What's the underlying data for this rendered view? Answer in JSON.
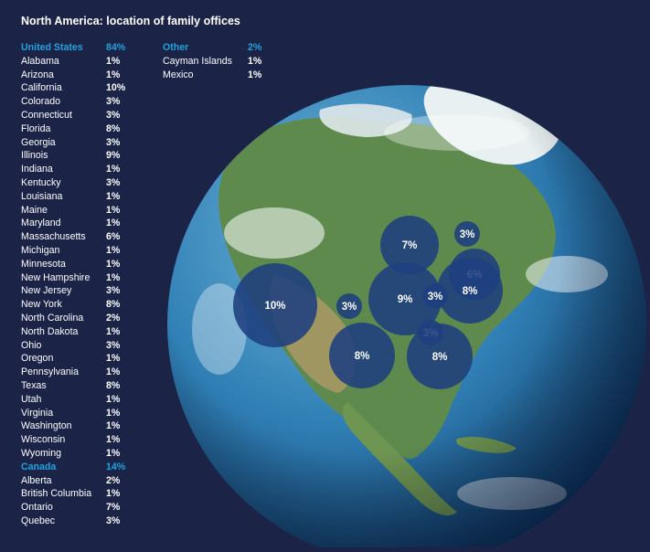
{
  "title": "North America: location of family offices",
  "united_states": {
    "label": "United States",
    "total": "84%",
    "rows": [
      {
        "name": "Alabama",
        "pct": "1%"
      },
      {
        "name": "Arizona",
        "pct": "1%"
      },
      {
        "name": "California",
        "pct": "10%"
      },
      {
        "name": "Colorado",
        "pct": "3%"
      },
      {
        "name": "Connecticut",
        "pct": "3%"
      },
      {
        "name": "Florida",
        "pct": "8%"
      },
      {
        "name": "Georgia",
        "pct": "3%"
      },
      {
        "name": "Illinois",
        "pct": "9%"
      },
      {
        "name": "Indiana",
        "pct": "1%"
      },
      {
        "name": "Kentucky",
        "pct": "3%"
      },
      {
        "name": "Louisiana",
        "pct": "1%"
      },
      {
        "name": "Maine",
        "pct": "1%"
      },
      {
        "name": "Maryland",
        "pct": "1%"
      },
      {
        "name": "Massachusetts",
        "pct": "6%"
      },
      {
        "name": "Michigan",
        "pct": "1%"
      },
      {
        "name": "Minnesota",
        "pct": "1%"
      },
      {
        "name": "New Hampshire",
        "pct": "1%"
      },
      {
        "name": "New Jersey",
        "pct": "3%"
      },
      {
        "name": "New York",
        "pct": "8%"
      },
      {
        "name": "North Carolina",
        "pct": "2%"
      },
      {
        "name": "North Dakota",
        "pct": "1%"
      },
      {
        "name": "Ohio",
        "pct": "3%"
      },
      {
        "name": "Oregon",
        "pct": "1%"
      },
      {
        "name": "Pennsylvania",
        "pct": "1%"
      },
      {
        "name": "Texas",
        "pct": "8%"
      },
      {
        "name": "Utah",
        "pct": "1%"
      },
      {
        "name": "Virginia",
        "pct": "1%"
      },
      {
        "name": "Washington",
        "pct": "1%"
      },
      {
        "name": "Wisconsin",
        "pct": "1%"
      },
      {
        "name": "Wyoming",
        "pct": "1%"
      }
    ]
  },
  "canada": {
    "label": "Canada",
    "total": "14%",
    "rows": [
      {
        "name": "Alberta",
        "pct": "2%"
      },
      {
        "name": "British Columbia",
        "pct": "1%"
      },
      {
        "name": "Ontario",
        "pct": "7%"
      },
      {
        "name": "Quebec",
        "pct": "3%"
      }
    ]
  },
  "other": {
    "label": "Other",
    "total": "2%",
    "rows": [
      {
        "name": "Cayman Islands",
        "pct": "1%"
      },
      {
        "name": "Mexico",
        "pct": "1%"
      }
    ]
  },
  "map_bubbles": [
    {
      "region": "California",
      "label": "10%",
      "value": 10
    },
    {
      "region": "Ontario",
      "label": "7%",
      "value": 7
    },
    {
      "region": "Quebec",
      "label": "3%",
      "value": 3
    },
    {
      "region": "Massachusetts",
      "label": "6%",
      "value": 6
    },
    {
      "region": "New York",
      "label": "8%",
      "value": 8
    },
    {
      "region": "Illinois",
      "label": "9%",
      "value": 9
    },
    {
      "region": "Ohio",
      "label": "3%",
      "value": 3
    },
    {
      "region": "Colorado",
      "label": "3%",
      "value": 3
    },
    {
      "region": "Georgia",
      "label": "3%",
      "value": 3
    },
    {
      "region": "Texas",
      "label": "8%",
      "value": 8
    },
    {
      "region": "Florida",
      "label": "8%",
      "value": 8
    }
  ],
  "colors": {
    "background": "#1b2347",
    "accent": "#1fa3e0",
    "bubble": "#1f3f7e",
    "ocean": "#2f7fb5",
    "land": "#5e8a4e"
  }
}
